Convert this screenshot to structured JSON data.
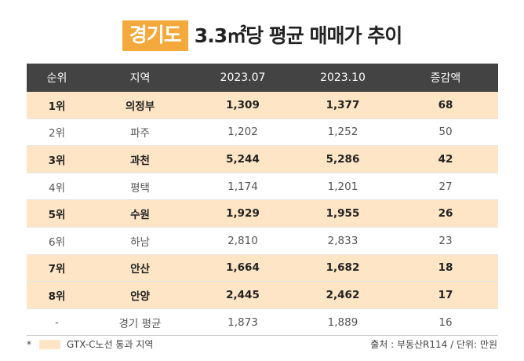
{
  "title": {
    "badge": "경기도",
    "text": "3.3㎡당 평균 매매가 추이"
  },
  "table": {
    "headers": [
      "순위",
      "지역",
      "2023.07",
      "2023.10",
      "증감액"
    ],
    "rows": [
      {
        "rank": "1위",
        "region": "의정부",
        "jul": "1,309",
        "oct": "1,377",
        "change": "68",
        "gtx": true
      },
      {
        "rank": "2위",
        "region": "파주",
        "jul": "1,202",
        "oct": "1,252",
        "change": "50",
        "gtx": false
      },
      {
        "rank": "3위",
        "region": "과천",
        "jul": "5,244",
        "oct": "5,286",
        "change": "42",
        "gtx": true
      },
      {
        "rank": "4위",
        "region": "평택",
        "jul": "1,174",
        "oct": "1,201",
        "change": "27",
        "gtx": false
      },
      {
        "rank": "5위",
        "region": "수원",
        "jul": "1,929",
        "oct": "1,955",
        "change": "26",
        "gtx": true
      },
      {
        "rank": "6위",
        "region": "하남",
        "jul": "2,810",
        "oct": "2,833",
        "change": "23",
        "gtx": false
      },
      {
        "rank": "7위",
        "region": "안산",
        "jul": "1,664",
        "oct": "1,682",
        "change": "18",
        "gtx": true
      },
      {
        "rank": "8위",
        "region": "안양",
        "jul": "2,445",
        "oct": "2,462",
        "change": "17",
        "gtx": true
      },
      {
        "rank": "-",
        "region": "경기 평균",
        "jul": "1,873",
        "oct": "1,889",
        "change": "16",
        "gtx": false
      }
    ]
  },
  "footer": {
    "legend_mark": "*",
    "legend_text": "GTX-C노선 통과 지역",
    "source": "출처 : 부동산R114 / 단위: 만원"
  },
  "colors": {
    "accent": "#f4a93c",
    "highlight": "#fde5c5",
    "header_bg": "#434343"
  }
}
